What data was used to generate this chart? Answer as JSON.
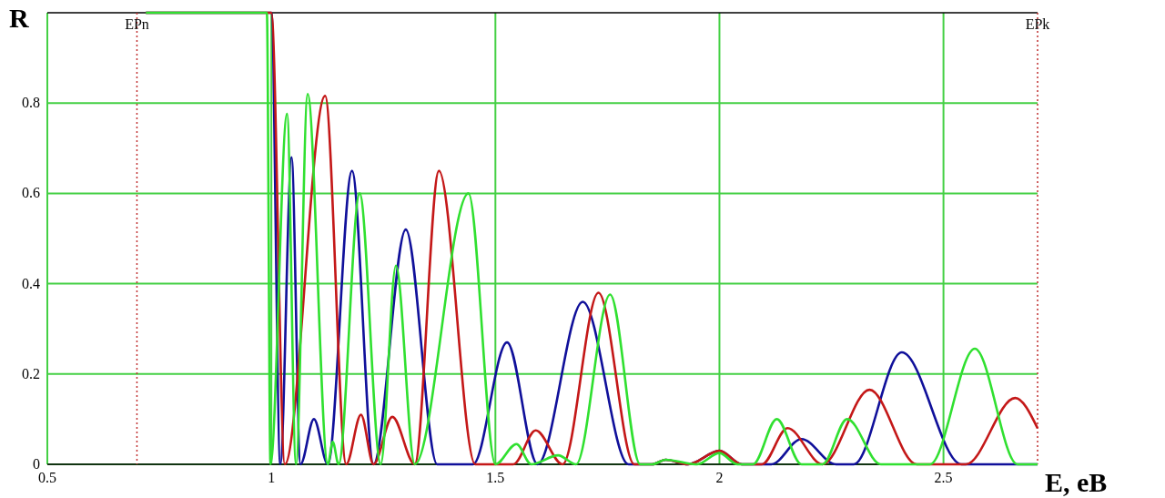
{
  "chart_data": {
    "type": "line",
    "xlabel": "E, eB",
    "ylabel": "R",
    "xlim": [
      0.5,
      2.71
    ],
    "xticks": [
      0.5,
      1,
      1.5,
      2,
      2.5
    ],
    "ylim": [
      0,
      1
    ],
    "yticks": [
      0,
      0.2,
      0.4,
      0.6,
      0.8
    ],
    "grid": true,
    "marker": "none",
    "line_style": "solid",
    "ref_lines": [
      {
        "axis": "x",
        "value": 0.7,
        "label": "EPn",
        "color": "#c03030",
        "line_style": "dotted"
      },
      {
        "axis": "x",
        "value": 2.71,
        "label": "EPk",
        "color": "#c03030",
        "line_style": "dotted"
      }
    ],
    "series": [
      {
        "color": "#10109a",
        "x": [
          0.72,
          1.0,
          1.02,
          1.045,
          1.065,
          1.095,
          1.126,
          1.18,
          1.228,
          1.3,
          1.37,
          1.45,
          1.526,
          1.594,
          1.695,
          1.797,
          1.85,
          1.88,
          1.93,
          2.0,
          2.05,
          2.116,
          2.183,
          2.26,
          2.3,
          2.407,
          2.54,
          2.71
        ],
        "values": [
          1,
          1,
          0,
          0.68,
          0,
          0.1,
          0,
          0.65,
          0,
          0.52,
          0,
          0,
          0.27,
          0,
          0.36,
          0,
          0,
          0.01,
          0,
          0.03,
          0,
          0,
          0.056,
          0,
          0,
          0.248,
          0,
          0
        ]
      },
      {
        "color": "#c41818",
        "x": [
          0.72,
          1.0,
          1.03,
          1.12,
          1.167,
          1.2,
          1.228,
          1.27,
          1.32,
          1.374,
          1.455,
          1.54,
          1.59,
          1.65,
          1.73,
          1.81,
          1.85,
          1.88,
          1.93,
          2.0,
          2.05,
          2.095,
          2.152,
          2.23,
          2.335,
          2.44,
          2.55,
          2.66,
          2.71
        ],
        "values": [
          1,
          1,
          0,
          0.816,
          0,
          0.11,
          0,
          0.105,
          0,
          0.65,
          0,
          0,
          0.075,
          0,
          0.38,
          0,
          0,
          0.01,
          0,
          0.03,
          0,
          0,
          0.08,
          0,
          0.165,
          0,
          0,
          0.147,
          0.08
        ]
      },
      {
        "color": "#30e030",
        "x": [
          0.72,
          0.99,
          0.998,
          1.035,
          1.055,
          1.081,
          1.126,
          1.137,
          1.15,
          1.197,
          1.244,
          1.278,
          1.32,
          1.44,
          1.5,
          1.547,
          1.58,
          1.64,
          1.68,
          1.756,
          1.823,
          1.85,
          1.88,
          1.95,
          2.0,
          2.04,
          2.075,
          2.128,
          2.183,
          2.23,
          2.285,
          2.36,
          2.47,
          2.57,
          2.665,
          2.71
        ],
        "values": [
          1,
          1,
          0,
          0.776,
          0,
          0.82,
          0,
          0.05,
          0,
          0.6,
          0,
          0.44,
          0,
          0.6,
          0,
          0.045,
          0,
          0.02,
          0,
          0.376,
          0,
          0,
          0.01,
          0,
          0.025,
          0,
          0,
          0.1,
          0,
          0,
          0.1,
          0,
          0,
          0.256,
          0,
          0
        ]
      }
    ]
  }
}
